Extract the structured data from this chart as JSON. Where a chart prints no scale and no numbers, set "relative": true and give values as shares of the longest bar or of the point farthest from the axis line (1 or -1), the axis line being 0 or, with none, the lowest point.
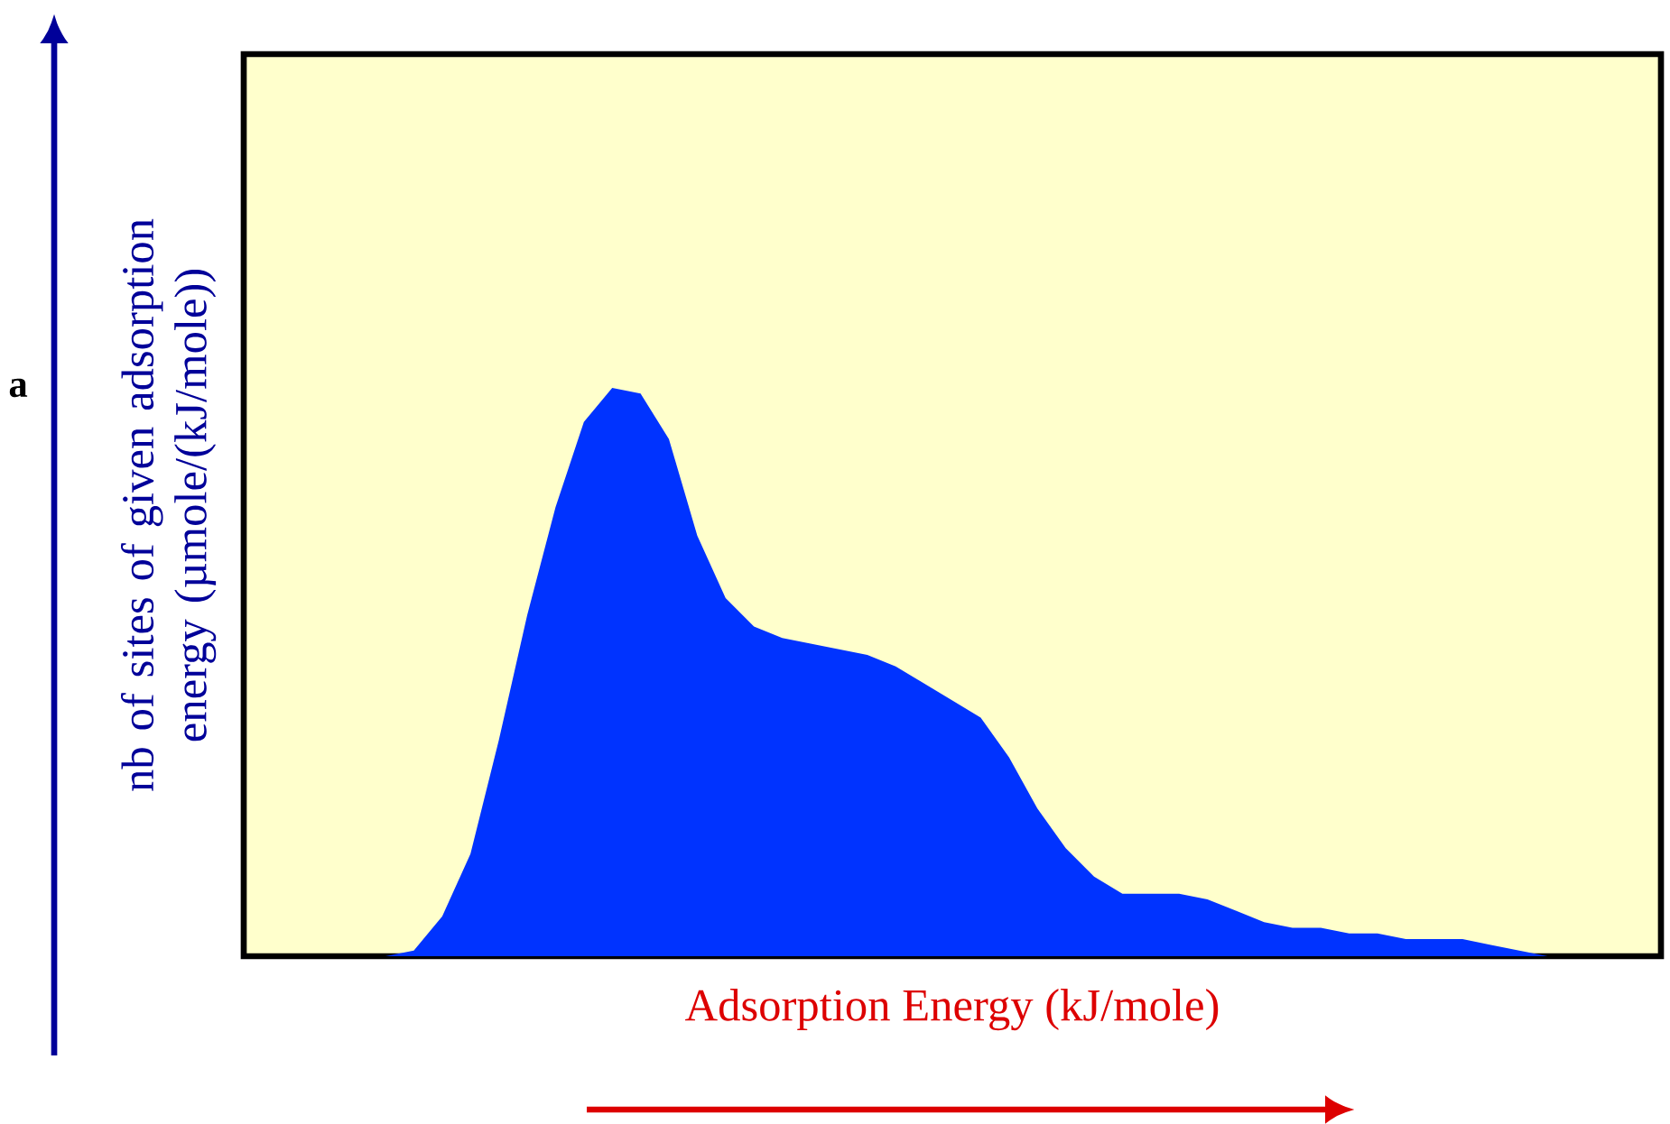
{
  "chart_data": {
    "type": "area",
    "relative": true,
    "xlabel": "Adsorption Energy (kJ/mole)",
    "ylabel": "nb of sites of given adsorption energy (µmole/(kJ/mole))",
    "annotations": [
      "a"
    ],
    "categories": [
      null,
      null,
      null,
      null,
      null,
      null,
      null,
      null,
      null,
      null,
      null,
      null,
      null,
      null,
      null,
      null,
      null,
      null,
      null,
      null,
      null,
      null,
      null,
      null,
      null,
      null,
      null,
      null,
      null,
      null,
      null,
      null,
      null,
      null,
      null,
      null,
      null,
      null,
      null,
      null,
      null,
      null,
      null,
      null,
      null,
      null,
      null,
      null,
      null,
      null,
      null
    ],
    "series": [
      {
        "color": "#0033ff",
        "values": [
          0,
          0,
          0,
          0,
          0,
          0,
          0.01,
          0.07,
          0.18,
          0.38,
          0.6,
          0.79,
          0.94,
          1,
          0.99,
          0.91,
          0.74,
          0.63,
          0.58,
          0.56,
          0.55,
          0.54,
          0.53,
          0.51,
          0.48,
          0.45,
          0.42,
          0.35,
          0.26,
          0.19,
          0.14,
          0.11,
          0.11,
          0.11,
          0.1,
          0.08,
          0.06,
          0.05,
          0.05,
          0.04,
          0.04,
          0.03,
          0.03,
          0.03,
          0.02,
          0.01,
          0,
          0,
          0,
          0,
          0
        ]
      }
    ]
  }
}
